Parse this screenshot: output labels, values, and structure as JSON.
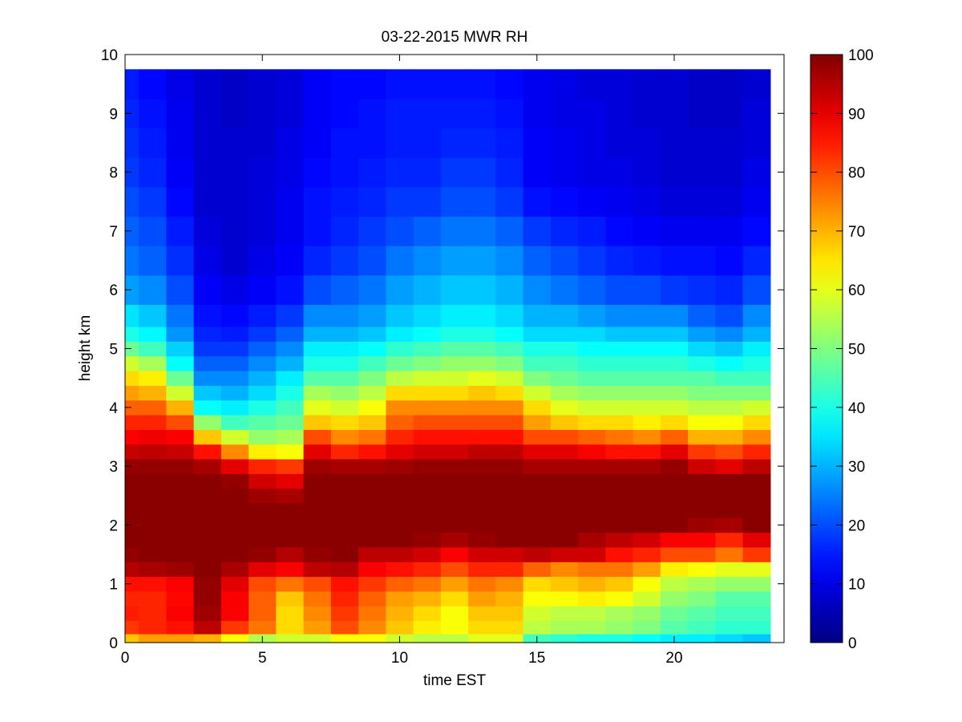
{
  "chart_data": {
    "type": "heatmap",
    "title": "03-22-2015 MWR RH",
    "xlabel": "time EST",
    "ylabel": "height km",
    "xlim": [
      0,
      24
    ],
    "ylim": [
      0,
      10
    ],
    "clim": [
      0,
      100
    ],
    "colormap": "jet",
    "xticks": [
      0,
      5,
      10,
      15,
      20
    ],
    "yticks": [
      0,
      1,
      2,
      3,
      4,
      5,
      6,
      7,
      8,
      9,
      10
    ],
    "colorbar_ticks": [
      0,
      10,
      20,
      30,
      40,
      50,
      60,
      70,
      80,
      90,
      100
    ],
    "time_hours": [
      0,
      1,
      2,
      3,
      4,
      5,
      6,
      7,
      8,
      9,
      10,
      11,
      12,
      13,
      14,
      15,
      16,
      17,
      18,
      19,
      20,
      21,
      22,
      23
    ],
    "height_km": [
      0.05,
      0.25,
      0.5,
      0.75,
      1.0,
      1.25,
      1.5,
      1.75,
      2.0,
      2.25,
      2.5,
      2.75,
      3.0,
      3.25,
      3.5,
      3.75,
      4.0,
      4.25,
      4.5,
      4.75,
      5.0,
      5.25,
      5.5,
      6.0,
      6.5,
      7.0,
      7.5,
      8.0,
      8.5,
      9.0,
      9.5
    ],
    "rh_profiles": [
      [
        68,
        82,
        85,
        84,
        86,
        95,
        98,
        99,
        99,
        99,
        99,
        99,
        98,
        93,
        88,
        84,
        78,
        72,
        66,
        58,
        48,
        40,
        35,
        28,
        24,
        22,
        20,
        18,
        17,
        16,
        15
      ],
      [
        72,
        84,
        84,
        84,
        86,
        96,
        99,
        99,
        99,
        99,
        99,
        99,
        98,
        94,
        89,
        84,
        78,
        70,
        64,
        54,
        44,
        37,
        32,
        26,
        22,
        20,
        18,
        16,
        15,
        14,
        13
      ],
      [
        72,
        86,
        88,
        87,
        88,
        97,
        99,
        99,
        99,
        99,
        99,
        99,
        98,
        93,
        88,
        80,
        70,
        58,
        48,
        38,
        33,
        27,
        24,
        20,
        17,
        15,
        13,
        12,
        11,
        11,
        10
      ],
      [
        70,
        94,
        97,
        98,
        98,
        99,
        99,
        99,
        99,
        99,
        99,
        99,
        96,
        86,
        68,
        52,
        38,
        32,
        26,
        22,
        18,
        16,
        14,
        12,
        10,
        9,
        8,
        8,
        8,
        8,
        8
      ],
      [
        62,
        82,
        88,
        88,
        90,
        96,
        99,
        99,
        99,
        99,
        99,
        98,
        90,
        74,
        58,
        44,
        36,
        30,
        26,
        22,
        18,
        15,
        13,
        10,
        8,
        8,
        8,
        8,
        8,
        7,
        7
      ],
      [
        55,
        76,
        78,
        78,
        80,
        90,
        98,
        99,
        99,
        99,
        97,
        92,
        84,
        64,
        52,
        46,
        40,
        34,
        30,
        26,
        22,
        18,
        15,
        12,
        10,
        9,
        9,
        9,
        8,
        8,
        8
      ],
      [
        58,
        66,
        66,
        68,
        76,
        88,
        95,
        99,
        99,
        99,
        96,
        90,
        82,
        62,
        54,
        48,
        44,
        40,
        36,
        30,
        26,
        22,
        18,
        14,
        12,
        11,
        11,
        10,
        10,
        9,
        9
      ],
      [
        58,
        72,
        74,
        76,
        80,
        94,
        98,
        99,
        99,
        99,
        99,
        99,
        97,
        90,
        80,
        68,
        60,
        54,
        46,
        40,
        36,
        30,
        26,
        20,
        16,
        14,
        14,
        13,
        12,
        12,
        12
      ],
      [
        62,
        80,
        82,
        84,
        86,
        95,
        99,
        99,
        99,
        99,
        99,
        99,
        96,
        84,
        74,
        66,
        58,
        52,
        46,
        40,
        36,
        30,
        26,
        22,
        18,
        16,
        15,
        14,
        14,
        13,
        13
      ],
      [
        62,
        74,
        76,
        78,
        82,
        88,
        94,
        99,
        99,
        99,
        99,
        99,
        96,
        86,
        76,
        68,
        62,
        56,
        50,
        44,
        38,
        32,
        28,
        24,
        20,
        18,
        16,
        15,
        14,
        14,
        13
      ],
      [
        58,
        68,
        70,
        72,
        78,
        86,
        94,
        99,
        99,
        99,
        99,
        99,
        97,
        90,
        84,
        78,
        74,
        66,
        56,
        48,
        42,
        36,
        32,
        28,
        24,
        20,
        18,
        16,
        15,
        15,
        14
      ],
      [
        56,
        64,
        66,
        70,
        76,
        84,
        92,
        98,
        99,
        99,
        99,
        99,
        98,
        92,
        86,
        80,
        74,
        66,
        58,
        50,
        44,
        38,
        34,
        30,
        26,
        22,
        18,
        16,
        15,
        15,
        14
      ],
      [
        56,
        62,
        62,
        66,
        72,
        80,
        88,
        96,
        99,
        99,
        99,
        99,
        98,
        92,
        86,
        80,
        74,
        66,
        58,
        52,
        46,
        40,
        36,
        32,
        28,
        24,
        20,
        18,
        16,
        15,
        14
      ],
      [
        60,
        66,
        68,
        72,
        76,
        84,
        92,
        98,
        99,
        99,
        99,
        99,
        98,
        94,
        86,
        80,
        74,
        68,
        60,
        52,
        46,
        40,
        36,
        32,
        28,
        24,
        20,
        18,
        16,
        15,
        14
      ],
      [
        60,
        66,
        68,
        70,
        74,
        84,
        92,
        99,
        99,
        99,
        99,
        99,
        98,
        94,
        86,
        80,
        74,
        66,
        58,
        50,
        44,
        38,
        34,
        30,
        26,
        22,
        18,
        16,
        15,
        14,
        13
      ],
      [
        44,
        56,
        58,
        62,
        66,
        78,
        94,
        99,
        99,
        99,
        99,
        99,
        96,
        90,
        80,
        72,
        66,
        58,
        50,
        44,
        40,
        34,
        30,
        26,
        22,
        18,
        14,
        12,
        12,
        11,
        11
      ],
      [
        42,
        54,
        56,
        62,
        68,
        74,
        92,
        99,
        99,
        99,
        99,
        99,
        96,
        90,
        80,
        68,
        60,
        54,
        48,
        44,
        40,
        34,
        30,
        24,
        20,
        16,
        13,
        11,
        11,
        10,
        10
      ],
      [
        40,
        54,
        56,
        64,
        70,
        76,
        92,
        96,
        99,
        99,
        99,
        99,
        96,
        88,
        78,
        66,
        58,
        52,
        46,
        42,
        38,
        34,
        28,
        22,
        18,
        15,
        12,
        10,
        10,
        10,
        9
      ],
      [
        40,
        52,
        54,
        62,
        68,
        76,
        86,
        94,
        99,
        99,
        99,
        99,
        96,
        86,
        76,
        66,
        58,
        52,
        46,
        42,
        38,
        32,
        26,
        20,
        16,
        13,
        11,
        10,
        9,
        9,
        9
      ],
      [
        38,
        50,
        52,
        58,
        62,
        72,
        84,
        92,
        99,
        99,
        99,
        99,
        96,
        86,
        74,
        64,
        58,
        52,
        46,
        42,
        38,
        32,
        26,
        20,
        15,
        12,
        10,
        9,
        9,
        8,
        8
      ],
      [
        36,
        46,
        48,
        52,
        56,
        64,
        80,
        88,
        99,
        99,
        99,
        99,
        98,
        90,
        78,
        66,
        58,
        52,
        46,
        42,
        38,
        32,
        26,
        18,
        14,
        11,
        9,
        8,
        8,
        8,
        8
      ],
      [
        36,
        44,
        46,
        50,
        54,
        62,
        80,
        88,
        97,
        99,
        99,
        99,
        92,
        82,
        70,
        62,
        56,
        50,
        46,
        40,
        34,
        28,
        22,
        17,
        14,
        11,
        9,
        8,
        8,
        7,
        7
      ],
      [
        34,
        42,
        44,
        46,
        52,
        60,
        76,
        84,
        96,
        99,
        99,
        99,
        90,
        80,
        70,
        62,
        56,
        50,
        44,
        38,
        32,
        26,
        20,
        16,
        13,
        11,
        9,
        8,
        8,
        7,
        7
      ],
      [
        32,
        42,
        44,
        46,
        52,
        60,
        82,
        90,
        99,
        99,
        99,
        99,
        94,
        84,
        74,
        66,
        58,
        50,
        44,
        40,
        36,
        30,
        26,
        20,
        16,
        13,
        11,
        10,
        9,
        9,
        8
      ]
    ]
  }
}
